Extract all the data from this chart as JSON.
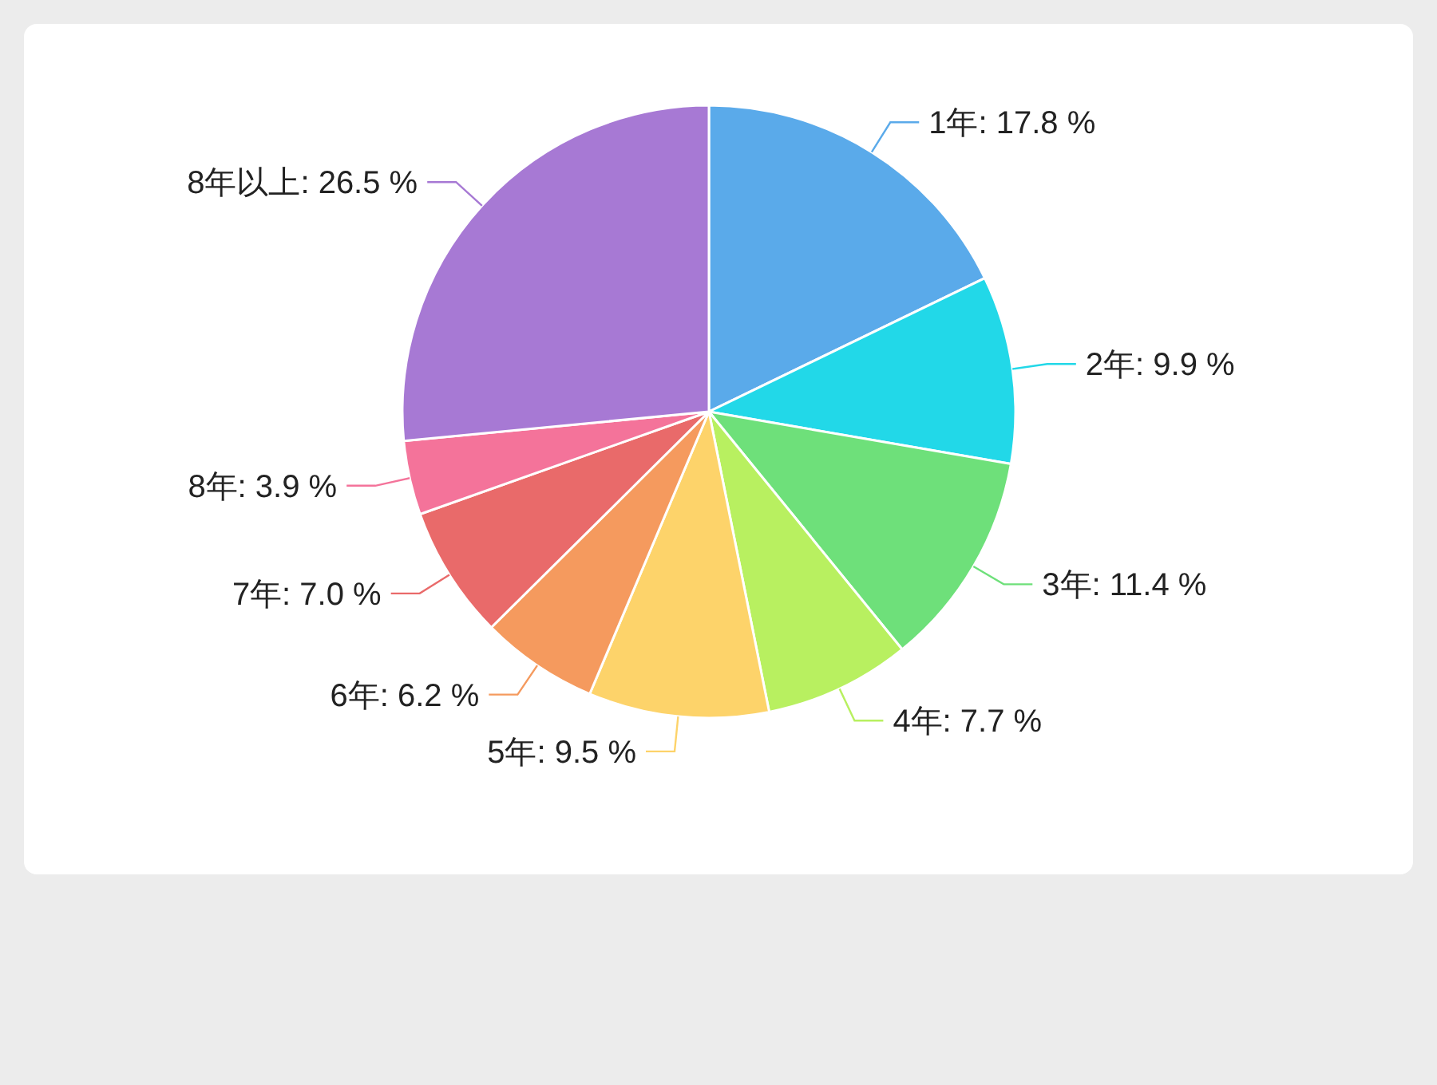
{
  "chart_data": {
    "type": "pie",
    "categories": [
      "1年",
      "2年",
      "3年",
      "4年",
      "5年",
      "6年",
      "7年",
      "8年",
      "8年以上"
    ],
    "values": [
      17.8,
      9.9,
      11.4,
      7.7,
      9.5,
      6.2,
      7.0,
      3.9,
      26.5
    ],
    "value_labels": [
      "17.8 %",
      "9.9 %",
      "11.4 %",
      "7.7 %",
      "9.5 %",
      "6.2 %",
      "7.0 %",
      "3.9 %",
      "26.5 %"
    ],
    "colors": [
      "#5aaaea",
      "#22d8e8",
      "#6ee07a",
      "#b8f060",
      "#fdd36a",
      "#f59a5e",
      "#e96a6a",
      "#f4739a",
      "#a779d4"
    ],
    "legend": false
  }
}
